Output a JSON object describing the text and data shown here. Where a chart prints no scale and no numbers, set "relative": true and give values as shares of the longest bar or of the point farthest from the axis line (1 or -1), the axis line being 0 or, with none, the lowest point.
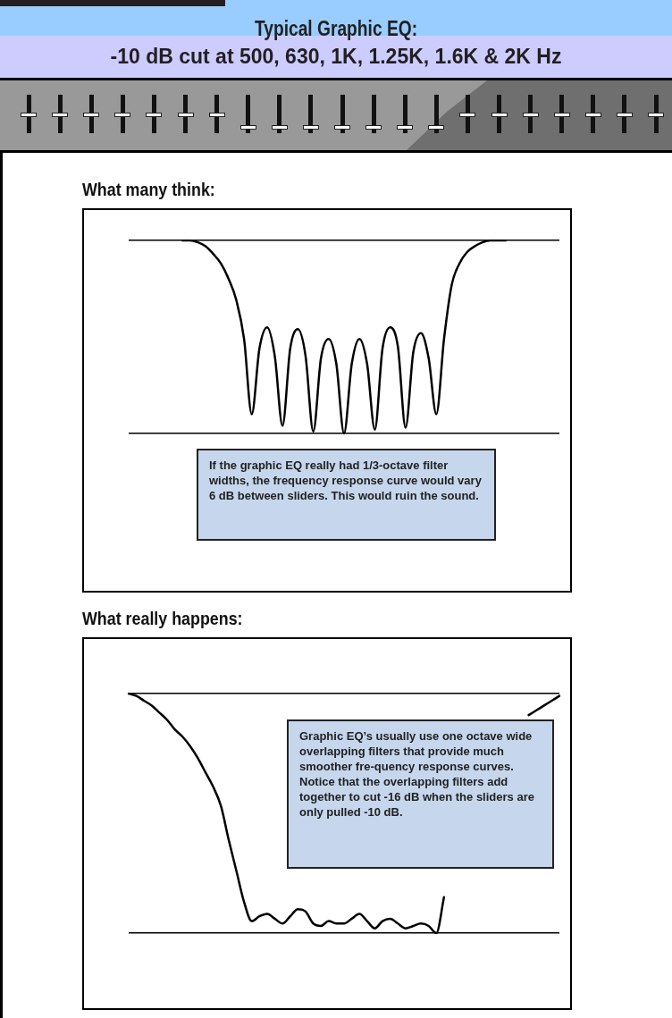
{
  "chart_data": [
    {
      "type": "other",
      "title": "Typical Graphic EQ:",
      "subtitle": "-10 dB cut at 500, 630, 1K, 1.25K, 1.6K & 2K Hz"
    },
    {
      "type": "line",
      "title": "What many think:",
      "relative": true,
      "grid": "y",
      "marker": "none",
      "line_style": "solid",
      "tick_labels": false,
      "categories": [
        null,
        null,
        null,
        null,
        null,
        null,
        null,
        null,
        null,
        null,
        null,
        null,
        null,
        null,
        null,
        null,
        null,
        null,
        null,
        null,
        null,
        null,
        null,
        null,
        null,
        null,
        null,
        null,
        null,
        null,
        null,
        null,
        null,
        null,
        null,
        null,
        null,
        null,
        null,
        null,
        null,
        null,
        null,
        null,
        null,
        null,
        null,
        null,
        null,
        null,
        null,
        null,
        null,
        null,
        null,
        null,
        null
      ],
      "series": [
        {
          "color": "#000000",
          "values": [
            null,
            null,
            null,
            null,
            null,
            null,
            null,
            1,
            1,
            0.99,
            0.97,
            0.93,
            0.88,
            0.8,
            0.69,
            0.49,
            0.1,
            0.44,
            0.55,
            0.4,
            0.04,
            0.44,
            0.54,
            0.4,
            0.01,
            0.39,
            0.49,
            0.36,
            0,
            0.36,
            0.49,
            0.36,
            0.02,
            0.44,
            0.55,
            0.45,
            0.03,
            0.42,
            0.52,
            0.39,
            0.1,
            0.49,
            0.77,
            0.88,
            0.94,
            0.97,
            0.99,
            1,
            1,
            1,
            null,
            null,
            null,
            null,
            null,
            null,
            null
          ]
        }
      ],
      "annotations": [
        "If the graphic EQ really had 1/3-octave filter widths, the frequency response curve would vary 6 dB between sliders. This would ruin the sound."
      ]
    },
    {
      "type": "line",
      "title": "What really happens:",
      "relative": true,
      "grid": "y",
      "marker": "none",
      "line_style": "solid",
      "tick_labels": false,
      "categories": [
        null,
        null,
        null,
        null,
        null,
        null,
        null,
        null,
        null,
        null,
        null,
        null,
        null,
        null,
        null,
        null,
        null,
        null,
        null,
        null,
        null,
        null,
        null,
        null,
        null,
        null,
        null,
        null,
        null,
        null,
        null,
        null,
        null,
        null,
        null,
        null,
        null,
        null,
        null,
        null,
        null,
        null,
        null,
        null,
        null,
        null,
        null,
        null,
        null,
        null,
        null,
        null,
        null,
        null,
        null,
        null,
        null
      ],
      "series": [
        {
          "color": "#000000",
          "values": [
            1,
            0.99,
            0.97,
            0.95,
            0.92,
            0.89,
            0.85,
            0.82,
            0.78,
            0.73,
            0.67,
            0.61,
            0.53,
            0.39,
            0.26,
            0.13,
            0.05,
            0.07,
            0.08,
            0.06,
            0.04,
            0.07,
            0.1,
            0.09,
            0.04,
            0.03,
            0.05,
            0.04,
            0.04,
            0.06,
            0.08,
            0.05,
            0.02,
            0.05,
            0.06,
            0.04,
            0.02,
            0.03,
            0.04,
            0.03,
            0,
            0.15,
            null,
            null,
            null,
            null,
            null,
            null,
            null,
            null,
            null,
            null,
            0.91,
            0.93,
            0.95,
            0.97,
            0.99
          ]
        }
      ],
      "annotations": [
        "Graphic EQ’s usually use one octave wide overlapping filters that provide much smoother fre-quency response curves.  Notice that the overlapping filters add together to cut -16 dB when the sliders are only pulled -10 dB."
      ]
    }
  ]
}
